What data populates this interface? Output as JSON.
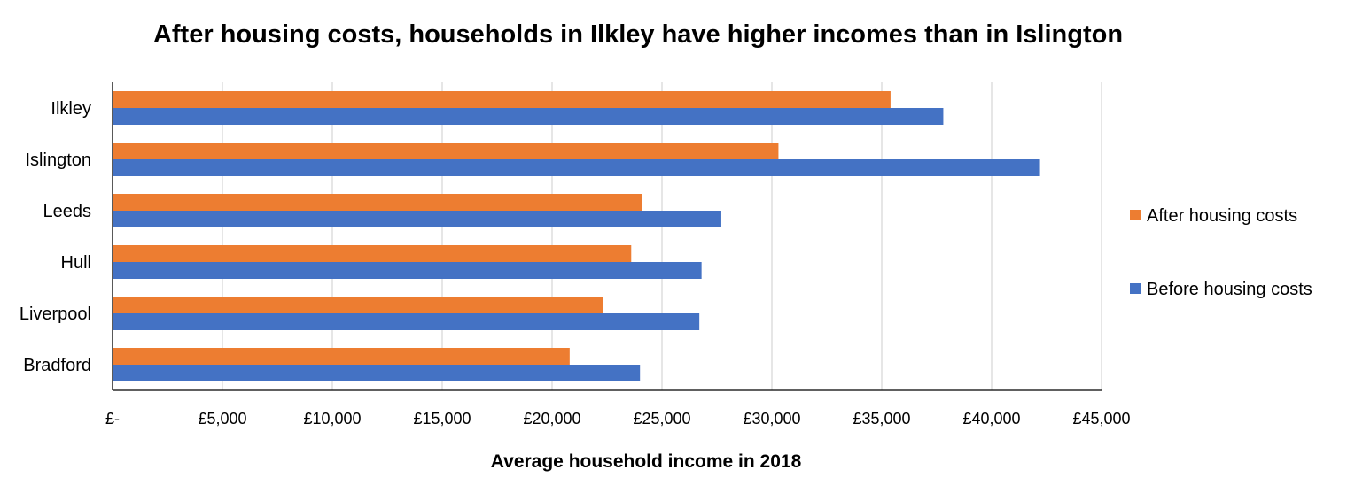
{
  "chart_data": {
    "type": "bar",
    "orientation": "horizontal",
    "title": "After housing costs, households in Ilkley have higher incomes than in Islington",
    "xlabel": "Average household income in 2018",
    "ylabel": "",
    "categories": [
      "Ilkley",
      "Islington",
      "Leeds",
      "Hull",
      "Liverpool",
      "Bradford"
    ],
    "series": [
      {
        "name": "After housing costs",
        "color": "#ED7D31",
        "values": [
          35400,
          30300,
          24100,
          23600,
          22300,
          20800
        ]
      },
      {
        "name": "Before housing costs",
        "color": "#4472C4",
        "values": [
          37800,
          42200,
          27700,
          26800,
          26700,
          24000
        ]
      }
    ],
    "xlim": [
      0,
      45000
    ],
    "xticks": [
      {
        "value": 0,
        "label": "£-"
      },
      {
        "value": 5000,
        "label": "£5,000"
      },
      {
        "value": 10000,
        "label": "£10,000"
      },
      {
        "value": 15000,
        "label": "£15,000"
      },
      {
        "value": 20000,
        "label": "£20,000"
      },
      {
        "value": 25000,
        "label": "£25,000"
      },
      {
        "value": 30000,
        "label": "£30,000"
      },
      {
        "value": 35000,
        "label": "£35,000"
      },
      {
        "value": 40000,
        "label": "£40,000"
      },
      {
        "value": 45000,
        "label": "£45,000"
      }
    ],
    "grid": true,
    "legend_position": "right"
  }
}
